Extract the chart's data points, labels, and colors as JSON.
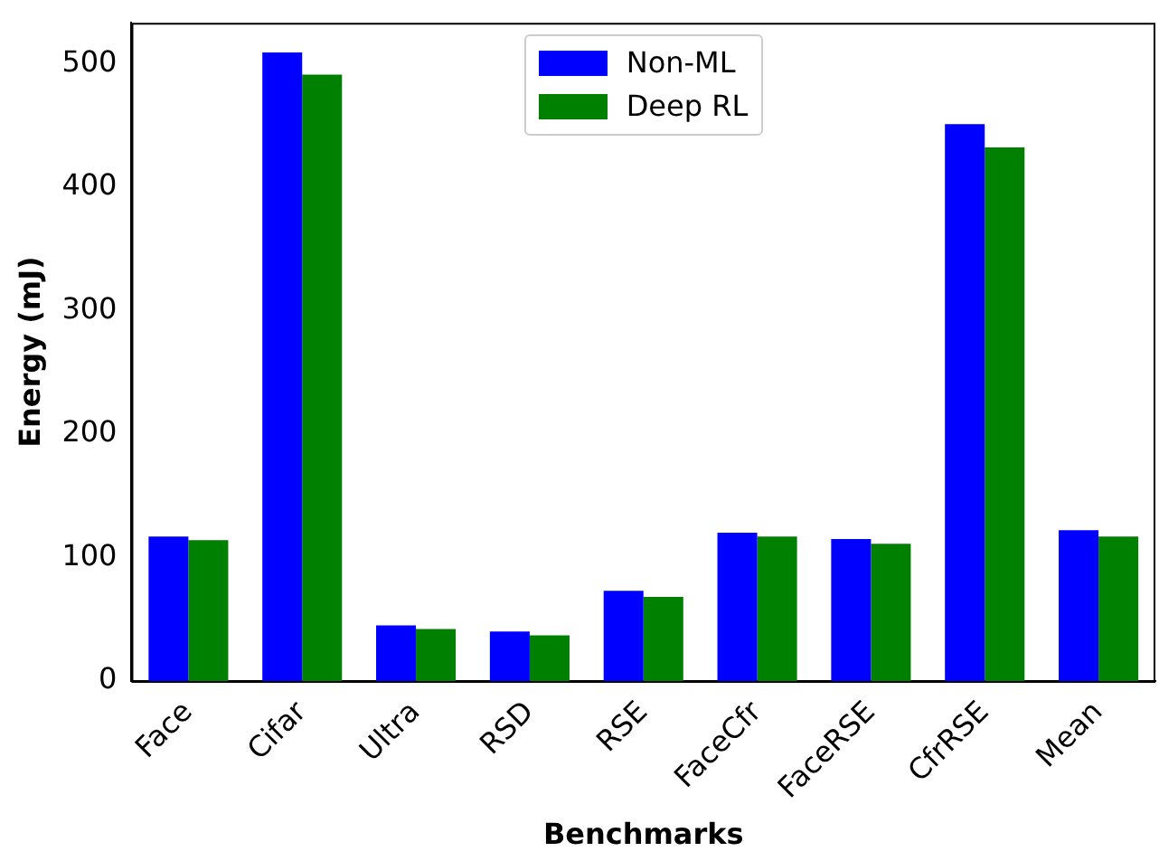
{
  "chart_data": {
    "type": "bar",
    "xlabel": "Benchmarks",
    "ylabel": "Energy (mJ)",
    "categories": [
      "Face",
      "Cifar",
      "Ultra",
      "RSD",
      "RSE",
      "FaceCfr",
      "FaceRSE",
      "CfrRSE",
      "Mean"
    ],
    "series": [
      {
        "name": "Non-ML",
        "color": "#0000ff",
        "values": [
          117,
          509,
          45,
          40,
          73,
          120,
          115,
          451,
          122
        ]
      },
      {
        "name": "Deep RL",
        "color": "#008000",
        "values": [
          114,
          491,
          42,
          37,
          68,
          117,
          111,
          432,
          117
        ]
      }
    ],
    "ylim": [
      0,
      533
    ],
    "yticks": [
      0,
      100,
      200,
      300,
      400,
      500
    ],
    "grid": false,
    "legend": "top"
  }
}
